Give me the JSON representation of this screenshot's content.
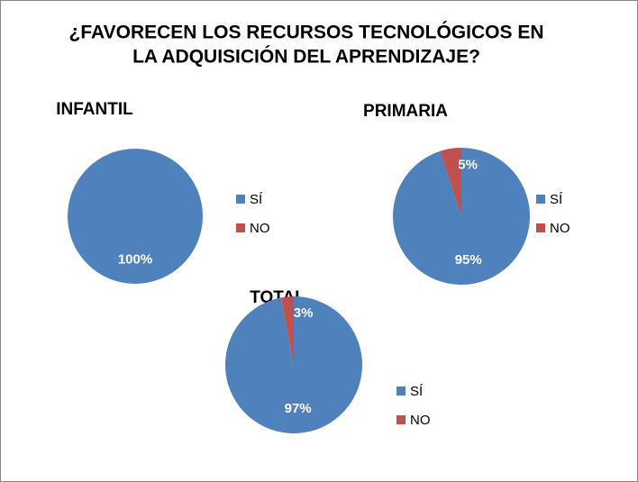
{
  "title": [
    "¿FAVORECEN LOS RECURSOS TECNOLÓGICOS EN",
    "LA ADQUISICIÓN DEL APRENDIZAJE?"
  ],
  "chart_data": [
    {
      "type": "pie",
      "title": "INFANTIL",
      "categories": [
        "SÍ",
        "NO"
      ],
      "values": [
        100,
        0
      ],
      "value_labels": [
        "100%",
        null
      ],
      "colors": [
        "#4f81bd",
        "#c0504d"
      ]
    },
    {
      "type": "pie",
      "title": "PRIMARIA",
      "categories": [
        "SÍ",
        "NO"
      ],
      "values": [
        95,
        5
      ],
      "value_labels": [
        "95%",
        "5%"
      ],
      "colors": [
        "#4f81bd",
        "#c0504d"
      ]
    },
    {
      "type": "pie",
      "title": "TOTAL",
      "categories": [
        "SÍ",
        "NO"
      ],
      "values": [
        97,
        3
      ],
      "value_labels": [
        "97%",
        "3%"
      ],
      "colors": [
        "#4f81bd",
        "#c0504d"
      ]
    }
  ]
}
